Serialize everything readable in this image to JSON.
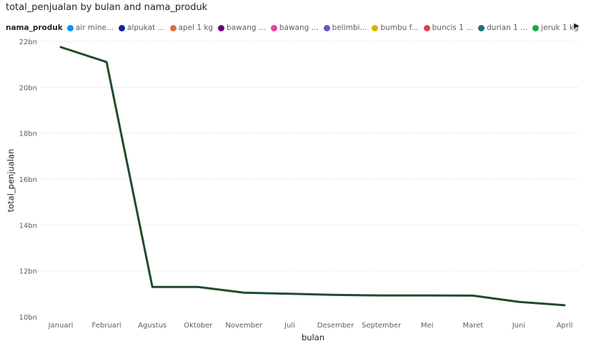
{
  "chart_data": {
    "type": "line",
    "title": "total_penjualan by bulan and nama_produk",
    "xlabel": "bulan",
    "ylabel": "total_penjualan",
    "legend": {
      "title": "nama_produk",
      "placement": "top-left",
      "entries": [
        {
          "label": "air mine...",
          "color": "#118DFF"
        },
        {
          "label": "alpukat ...",
          "color": "#12239E"
        },
        {
          "label": "apel 1 kg",
          "color": "#E66C37"
        },
        {
          "label": "bawang ...",
          "color": "#6B007B"
        },
        {
          "label": "bawang ...",
          "color": "#E044A7"
        },
        {
          "label": "belimbi...",
          "color": "#744EC2"
        },
        {
          "label": "bumbu f...",
          "color": "#D9B300"
        },
        {
          "label": "buncis 1 ...",
          "color": "#D64550"
        },
        {
          "label": "durian 1 ...",
          "color": "#197278"
        },
        {
          "label": "jeruk 1 kg",
          "color": "#1AAB40"
        }
      ]
    },
    "categories": [
      "Januari",
      "Februari",
      "Agustus",
      "Oktober",
      "November",
      "Juli",
      "Desember",
      "September",
      "Mei",
      "Maret",
      "Juni",
      "April"
    ],
    "series": [
      {
        "color": "#1E4D2B",
        "values": [
          21.75,
          21.1,
          11.3,
          11.3,
          11.05,
          11.0,
          10.95,
          10.93,
          10.93,
          10.92,
          10.65,
          10.5
        ]
      }
    ],
    "y_ticks": [
      10,
      12,
      14,
      16,
      18,
      20,
      22
    ],
    "y_tick_suffix": "bn",
    "ylim": [
      10,
      22
    ],
    "grid": true
  }
}
